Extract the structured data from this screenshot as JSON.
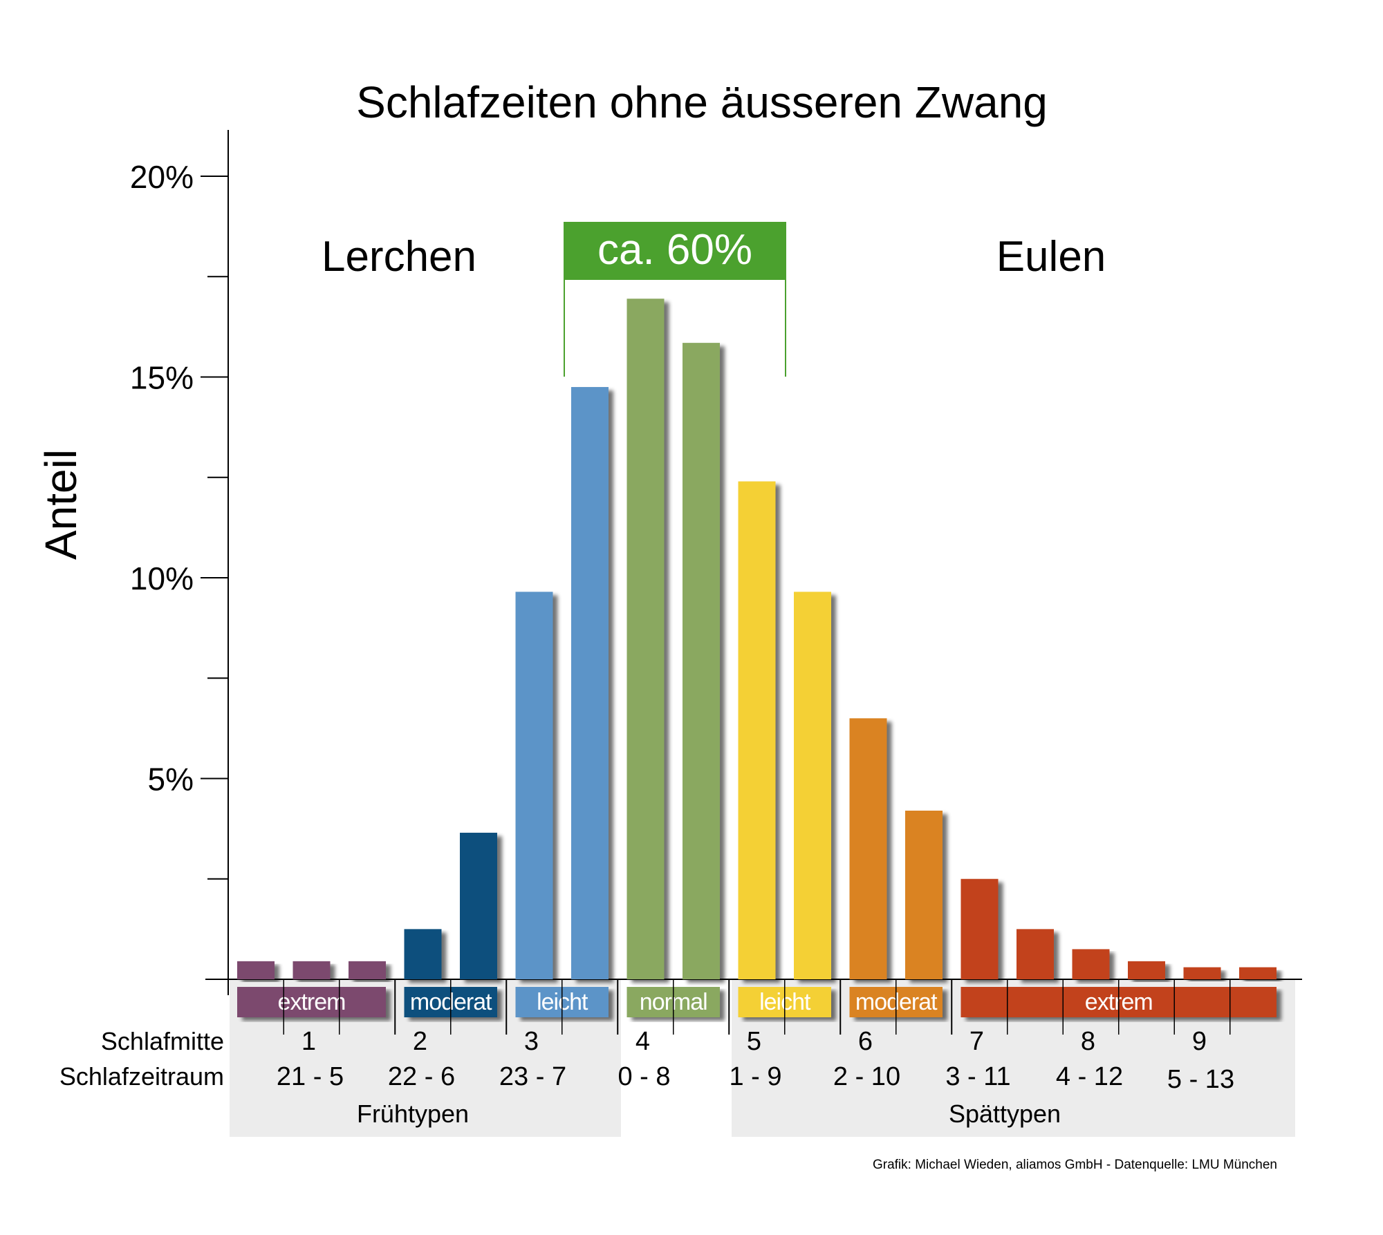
{
  "chart_data": {
    "type": "bar",
    "title": "Schlafzeiten ohne äusseren Zwang",
    "ylabel": "Anteil",
    "ylim": [
      0,
      20
    ],
    "yticks": [
      {
        "value": 5,
        "label": "5%"
      },
      {
        "value": 10,
        "label": "10%"
      },
      {
        "value": 15,
        "label": "15%"
      },
      {
        "value": 20,
        "label": "20%"
      }
    ],
    "yminor": [
      2.5,
      7.5,
      12.5,
      17.5
    ],
    "bars": [
      {
        "value": 0.45,
        "color": "#7b4a6e"
      },
      {
        "value": 0.45,
        "color": "#7b4a6e"
      },
      {
        "value": 0.45,
        "color": "#7b4a6e"
      },
      {
        "value": 1.25,
        "color": "#0e4f7d"
      },
      {
        "value": 3.65,
        "color": "#0e4f7d"
      },
      {
        "value": 9.65,
        "color": "#5b94c8"
      },
      {
        "value": 14.75,
        "color": "#5b94c8"
      },
      {
        "value": 16.95,
        "color": "#8aa860"
      },
      {
        "value": 15.85,
        "color": "#8aa860"
      },
      {
        "value": 12.4,
        "color": "#f4d034"
      },
      {
        "value": 9.65,
        "color": "#f4d034"
      },
      {
        "value": 6.5,
        "color": "#da8320"
      },
      {
        "value": 4.2,
        "color": "#da8320"
      },
      {
        "value": 2.5,
        "color": "#c2431d"
      },
      {
        "value": 1.25,
        "color": "#c2431d"
      },
      {
        "value": 0.75,
        "color": "#c2431d"
      },
      {
        "value": 0.45,
        "color": "#c2431d"
      },
      {
        "value": 0.3,
        "color": "#c2431d"
      },
      {
        "value": 0.3,
        "color": "#c2431d"
      }
    ],
    "categories": [
      {
        "label": "extrem",
        "from": 0,
        "to": 2,
        "color": "#7b4a6e"
      },
      {
        "label": "moderat",
        "from": 3,
        "to": 4,
        "color": "#0e4f7d"
      },
      {
        "label": "leicht",
        "from": 5,
        "to": 6,
        "color": "#5b94c8"
      },
      {
        "label": "normal",
        "from": 7,
        "to": 8,
        "color": "#8aa860"
      },
      {
        "label": "leicht",
        "from": 9,
        "to": 10,
        "color": "#f4d034"
      },
      {
        "label": "moderat",
        "from": 11,
        "to": 12,
        "color": "#da8320"
      },
      {
        "label": "extrem",
        "from": 13,
        "to": 18,
        "color": "#c2431d"
      }
    ],
    "schlafmitte_label": "Schlafmitte",
    "schlafzeitraum_label": "Schlafzeitraum",
    "schlafmitte": [
      "1",
      "2",
      "3",
      "4",
      "5",
      "6",
      "7",
      "8",
      "9"
    ],
    "schlafzeitraum": [
      "21 - 5",
      "22 - 6",
      "23 - 7",
      "0 - 8",
      "1 - 9",
      "2 - 10",
      "3 - 11",
      "4 - 12",
      "5 - 13"
    ],
    "groups": {
      "early": "Frühtypen",
      "late": "Spättypen"
    },
    "annotations": {
      "lerchen": "Lerchen",
      "eulen": "Eulen",
      "center": "ca. 60%",
      "center_color": "#4ba12e"
    },
    "credit": "Grafik: Michael Wieden, aliamos GmbH - Datenquelle: LMU München"
  }
}
